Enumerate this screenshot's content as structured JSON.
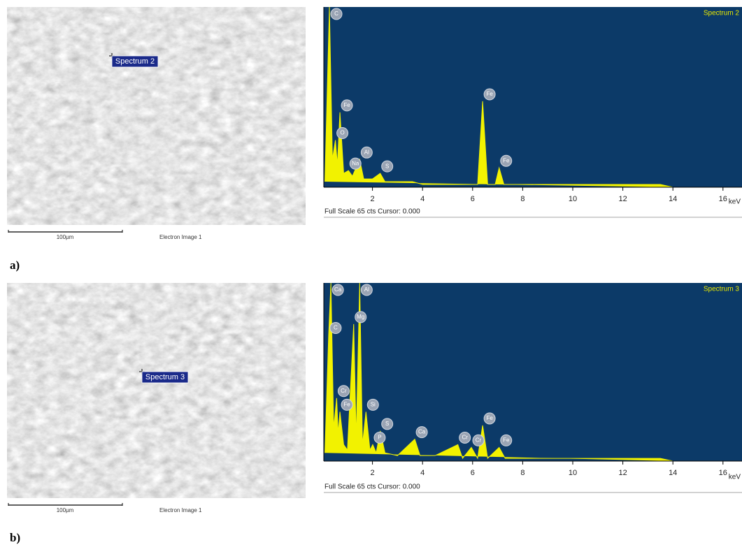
{
  "panel_labels": [
    "a)",
    "b)"
  ],
  "images": [
    {
      "spectrum_label": "Spectrum 2",
      "scale_label": "100µm",
      "caption": "Electron Image 1"
    },
    {
      "spectrum_label": "Spectrum 3",
      "scale_label": "100µm",
      "caption": "Electron Image 1"
    }
  ],
  "chart_data": [
    {
      "type": "area",
      "title": "Spectrum 2",
      "footer": "Full Scale 65 cts Cursor: 0.000",
      "x_label": "keV",
      "color": "#f2f200",
      "background": "#0c3a68",
      "x": [
        0.1,
        0.28,
        0.4,
        0.52,
        0.6,
        0.7,
        0.85,
        1.04,
        1.2,
        1.49,
        1.65,
        2.0,
        2.31,
        2.5,
        3.0,
        3.6,
        4.0,
        5.0,
        6.2,
        6.4,
        6.6,
        6.9,
        7.06,
        7.25,
        9.0,
        12.0,
        13.5,
        14.0
      ],
      "values": [
        2,
        65,
        10,
        17,
        8,
        27,
        5,
        6,
        4,
        10,
        3,
        3,
        5,
        2,
        2,
        2,
        1,
        1,
        1,
        31,
        1,
        1,
        7,
        1,
        1,
        1,
        1,
        0
      ],
      "annotations": [
        {
          "label": "C",
          "x": 0.28
        },
        {
          "label": "O",
          "x": 0.52
        },
        {
          "label": "Fe",
          "x": 0.7
        },
        {
          "label": "Na",
          "x": 1.04
        },
        {
          "label": "Al",
          "x": 1.49
        },
        {
          "label": "S",
          "x": 2.31
        },
        {
          "label": "Fe",
          "x": 6.4
        },
        {
          "label": "Fe",
          "x": 7.06
        }
      ],
      "xlim": [
        0,
        16.76
      ],
      "xticks": [
        2,
        4,
        6,
        8,
        10,
        12,
        14,
        16
      ],
      "ylim": [
        0,
        65
      ]
    },
    {
      "type": "area",
      "title": "Spectrum 3",
      "footer": "Full Scale 65 cts Cursor: 0.000",
      "x_label": "keV",
      "color": "#f2f200",
      "background": "#0c3a68",
      "x": [
        0.1,
        0.25,
        0.34,
        0.45,
        0.57,
        0.63,
        0.7,
        0.85,
        1.0,
        1.25,
        1.35,
        1.49,
        1.6,
        1.74,
        1.9,
        2.01,
        2.15,
        2.31,
        2.5,
        3.0,
        3.69,
        3.9,
        4.5,
        5.41,
        5.6,
        5.95,
        6.2,
        6.4,
        6.6,
        7.06,
        7.3,
        9.0,
        12.0,
        13.5,
        14.0
      ],
      "values": [
        3,
        46,
        65,
        12,
        23,
        10,
        18,
        6,
        4,
        50,
        8,
        65,
        6,
        18,
        4,
        6,
        3,
        11,
        3,
        2,
        8,
        2,
        2,
        6,
        1,
        5,
        1,
        13,
        1,
        5,
        1,
        1,
        1,
        1,
        0
      ],
      "annotations": [
        {
          "label": "Ca",
          "x": 0.34
        },
        {
          "label": "C",
          "x": 0.25
        },
        {
          "label": "Cr",
          "x": 0.57
        },
        {
          "label": "Fe",
          "x": 0.7
        },
        {
          "label": "Mg",
          "x": 1.25
        },
        {
          "label": "Al",
          "x": 1.49
        },
        {
          "label": "Si",
          "x": 1.74
        },
        {
          "label": "P",
          "x": 2.01
        },
        {
          "label": "S",
          "x": 2.31
        },
        {
          "label": "Ca",
          "x": 3.69
        },
        {
          "label": "Cr",
          "x": 5.41
        },
        {
          "label": "Cr",
          "x": 5.95
        },
        {
          "label": "Fe",
          "x": 6.4
        },
        {
          "label": "Fe",
          "x": 7.06
        }
      ],
      "xlim": [
        0,
        16.76
      ],
      "xticks": [
        2,
        4,
        6,
        8,
        10,
        12,
        14,
        16
      ],
      "ylim": [
        0,
        65
      ]
    }
  ]
}
